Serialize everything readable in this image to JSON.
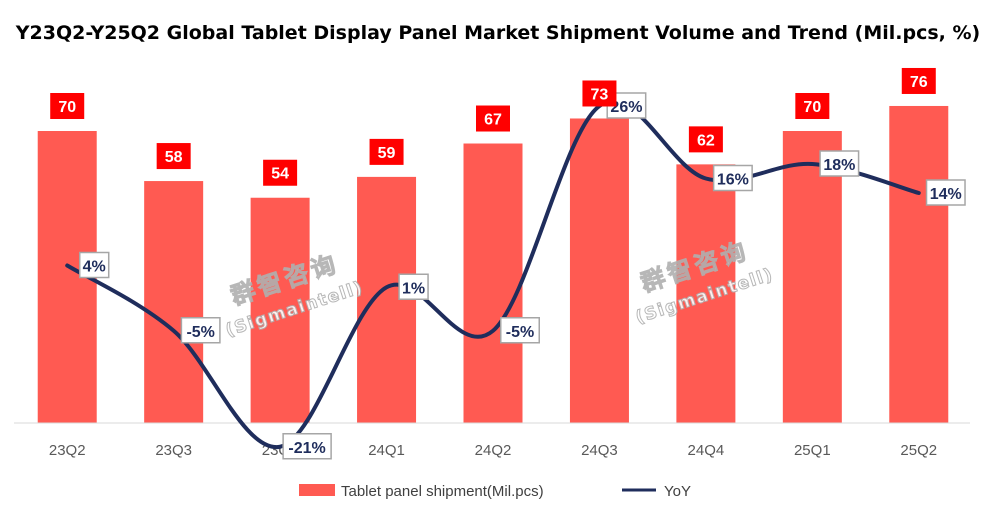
{
  "chart_data": {
    "type": "bar",
    "title": "Y23Q2-Y25Q2 Global Tablet Display Panel Market Shipment Volume and Trend (Mil.pcs, %)",
    "categories": [
      "23Q2",
      "23Q3",
      "23Q4",
      "24Q1",
      "24Q2",
      "24Q3",
      "24Q4",
      "25Q1",
      "25Q2"
    ],
    "series": [
      {
        "name": "Tablet panel shipment(Mil.pcs)",
        "type": "bar",
        "values": [
          70,
          58,
          54,
          59,
          67,
          73,
          62,
          70,
          76
        ],
        "color": "#ff5a52",
        "label_color": "#ff0000"
      },
      {
        "name": "YoY",
        "type": "line",
        "smooth": true,
        "values": [
          4,
          -5,
          -21,
          1,
          -5,
          26,
          16,
          18,
          14
        ],
        "labels": [
          "4%",
          "-5%",
          "-21%",
          "1%",
          "-5%",
          "26%",
          "16%",
          "18%",
          "14%"
        ],
        "color": "#1f2d5c"
      }
    ],
    "ylim_bar": [
      0,
      80
    ],
    "ylim_yoy": [
      -25,
      30
    ],
    "legend": "bottom",
    "grid": false,
    "watermark": {
      "cn": "群智咨询",
      "en": "(Sigmaintell)"
    }
  }
}
